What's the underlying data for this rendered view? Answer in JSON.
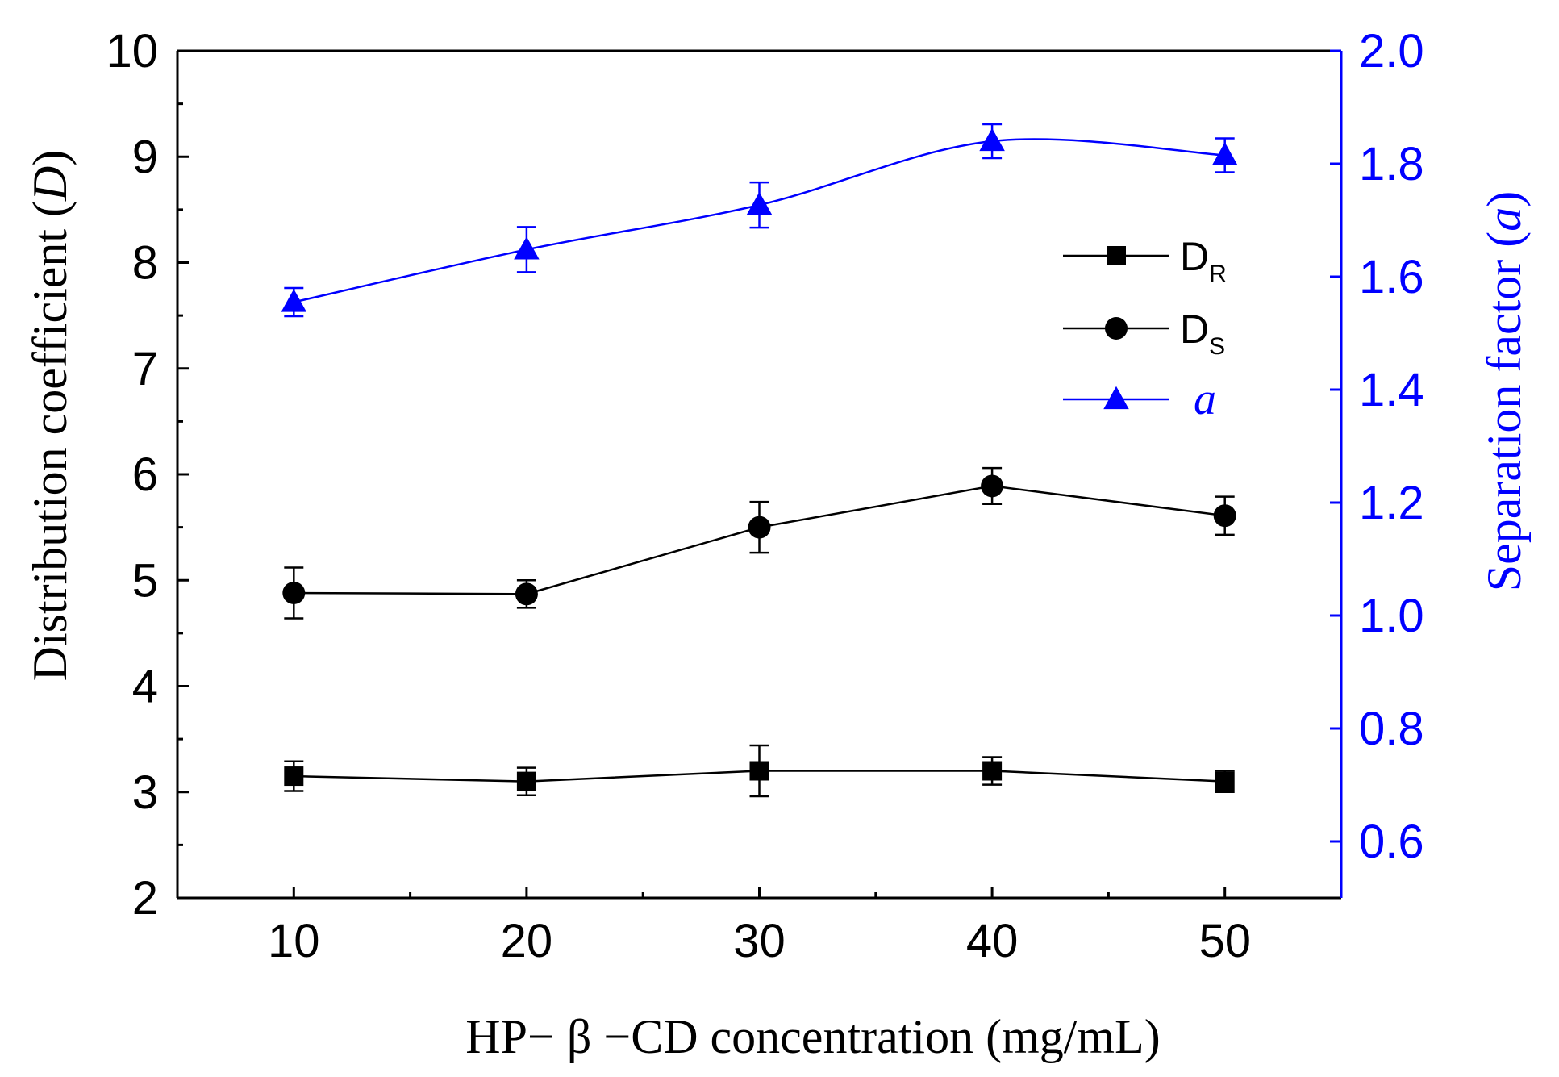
{
  "chart_data": {
    "type": "line",
    "xlabel": "HP− β −CD concentration (mg/mL)",
    "ylabel": {
      "prefix": "Distribution coefficient (",
      "symbol": "D",
      "suffix": ")"
    },
    "y2label": {
      "prefix": "Separation factor (",
      "symbol": "a",
      "suffix": ")"
    },
    "xlim": [
      5,
      55
    ],
    "ylim": [
      2,
      10
    ],
    "y2lim": [
      0.5,
      2.0
    ],
    "x_ticks": [
      "10",
      "20",
      "30",
      "40",
      "50"
    ],
    "y_ticks": [
      "2",
      "3",
      "4",
      "5",
      "6",
      "7",
      "8",
      "9",
      "10"
    ],
    "y2_ticks": [
      "0.6",
      "0.8",
      "1.0",
      "1.2",
      "1.4",
      "1.6",
      "1.8",
      "2.0"
    ],
    "x": [
      10,
      20,
      30,
      40,
      50
    ],
    "series": [
      {
        "name": "D",
        "subscript": "R",
        "axis": "left",
        "marker": "square",
        "color": "#000000",
        "values": [
          3.15,
          3.1,
          3.2,
          3.2,
          3.1
        ],
        "errors": [
          0.14,
          0.13,
          0.24,
          0.13,
          0.1
        ]
      },
      {
        "name": "D",
        "subscript": "S",
        "axis": "left",
        "marker": "circle",
        "color": "#000000",
        "values": [
          4.88,
          4.87,
          5.5,
          5.89,
          5.61
        ],
        "errors": [
          0.24,
          0.13,
          0.24,
          0.17,
          0.18
        ]
      },
      {
        "name": "a",
        "subscript": "",
        "axis": "right",
        "marker": "triangle",
        "color": "#0000ff",
        "smooth": true,
        "values": [
          1.555,
          1.648,
          1.727,
          1.84,
          1.815
        ],
        "errors": [
          0.025,
          0.04,
          0.04,
          0.03,
          0.03
        ]
      }
    ],
    "legend_position": "upper-right inside plot",
    "colors": {
      "axis": "#000000",
      "right_axis": "#0000ff"
    }
  }
}
